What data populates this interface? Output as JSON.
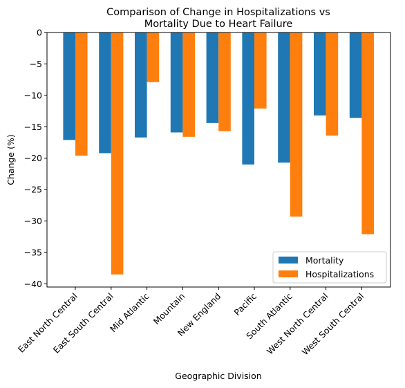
{
  "chart_data": {
    "type": "bar",
    "title": [
      "Comparison of Change in Hospitalizations vs",
      "Mortality Due to Heart Failure"
    ],
    "xlabel": "Geographic Division",
    "ylabel": "Change (%)",
    "categories": [
      "East North Central",
      "East South Central",
      "Mid Atlantic",
      "Mountain",
      "New England",
      "Pacific",
      "South Atlantic",
      "West North Central",
      "West South Central"
    ],
    "series": [
      {
        "name": "Mortality",
        "color": "#1f77b4",
        "values": [
          -17.1,
          -19.2,
          -16.7,
          -15.9,
          -14.4,
          -21.0,
          -20.7,
          -13.2,
          -13.6
        ]
      },
      {
        "name": "Hospitalizations",
        "color": "#ff7f0e",
        "values": [
          -19.6,
          -38.5,
          -7.9,
          -16.6,
          -15.7,
          -12.1,
          -29.3,
          -16.4,
          -32.1
        ]
      }
    ],
    "ylim": [
      -40.5,
      0
    ],
    "yticks": [
      0,
      -5,
      -10,
      -15,
      -20,
      -25,
      -30,
      -35,
      -40
    ],
    "legend_position": "lower-right",
    "grid": false
  }
}
